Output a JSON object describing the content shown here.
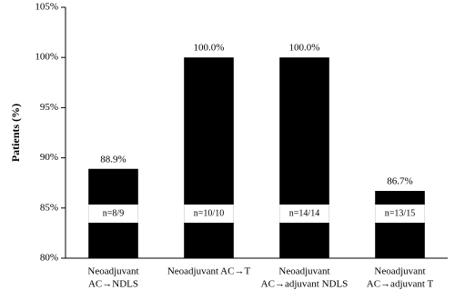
{
  "chart_data": {
    "type": "bar",
    "y_label": "Patients (%)",
    "categories": [
      [
        "Neoadjuvant",
        "AC→NDLS"
      ],
      [
        "Neoadjuvant AC→T"
      ],
      [
        "Neoadjuvant",
        "AC→adjuvant NDLS"
      ],
      [
        "Neoadjuvant",
        "AC→adjuvant T"
      ]
    ],
    "values": [
      88.9,
      100.0,
      100.0,
      86.7
    ],
    "value_labels": [
      "88.9%",
      "100.0%",
      "100.0%",
      "86.7%"
    ],
    "sample_labels": [
      "n=8/9",
      "n=10/10",
      "n=14/14",
      "n=13/15"
    ],
    "color": "#000000",
    "ylim": [
      80,
      105
    ],
    "yticks": [
      {
        "value": 80,
        "label": "80%"
      },
      {
        "value": 85,
        "label": "85%"
      },
      {
        "value": 90,
        "label": "90%"
      },
      {
        "value": 95,
        "label": "95%"
      },
      {
        "value": 100,
        "label": "100%"
      },
      {
        "value": 105,
        "label": "105%"
      }
    ]
  }
}
